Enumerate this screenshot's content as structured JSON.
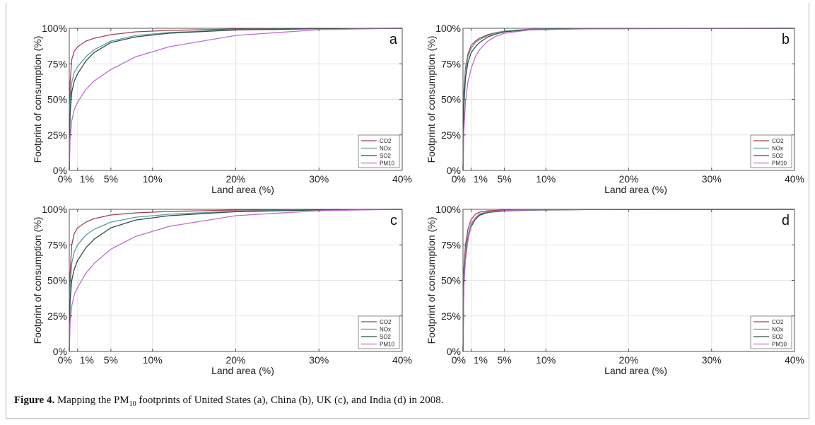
{
  "caption": {
    "label": "Figure 4.",
    "text_before": "Mapping the PM",
    "subscript": "10",
    "text_after": " footprints of United States (a), China (b), UK (c), and India (d) in 2008."
  },
  "colors": {
    "CO2": "#a0424c",
    "NOx": "#5e9aa2",
    "SO2": "#2c4f40",
    "PM10": "#c06ad0"
  },
  "chart_data": [
    {
      "type": "line",
      "panel": "a",
      "xlabel": "Land area (%)",
      "ylabel": "Footprint of consumption (%)",
      "xlim": [
        0,
        40
      ],
      "ylim": [
        0,
        100
      ],
      "xticks": [
        "0%",
        "1%",
        "5%",
        "10%",
        "20%",
        "30%",
        "40%"
      ],
      "xtick_values": [
        0,
        1,
        5,
        10,
        20,
        30,
        40
      ],
      "yticks": [
        "0%",
        "25%",
        "50%",
        "75%",
        "100%"
      ],
      "ytick_values": [
        0,
        25,
        50,
        75,
        100
      ],
      "grid": true,
      "legend": "bottom-right",
      "series": [
        {
          "name": "CO2",
          "x": [
            0,
            0.1,
            0.3,
            0.6,
            1,
            2,
            3,
            5,
            8,
            12,
            20,
            30,
            40
          ],
          "y": [
            0,
            62,
            78,
            84,
            87,
            91,
            93,
            95.5,
            97.5,
            98.5,
            99.5,
            99.9,
            100
          ]
        },
        {
          "name": "NOx",
          "x": [
            0,
            0.1,
            0.3,
            0.6,
            1,
            2,
            3,
            5,
            8,
            12,
            20,
            30,
            40
          ],
          "y": [
            0,
            48,
            62,
            69,
            73,
            80,
            85,
            91,
            95,
            97,
            99,
            99.8,
            100
          ]
        },
        {
          "name": "SO2",
          "x": [
            0,
            0.1,
            0.3,
            0.6,
            1,
            2,
            3,
            5,
            8,
            12,
            20,
            30,
            40
          ],
          "y": [
            0,
            40,
            55,
            63,
            68,
            77,
            83,
            90,
            94,
            96.5,
            98.8,
            99.7,
            100
          ]
        },
        {
          "name": "PM10",
          "x": [
            0,
            0.1,
            0.3,
            0.6,
            1,
            2,
            3,
            5,
            8,
            12,
            20,
            30,
            40
          ],
          "y": [
            0,
            22,
            35,
            43,
            48,
            57,
            63,
            71,
            80,
            87,
            95,
            99,
            100
          ]
        }
      ]
    },
    {
      "type": "line",
      "panel": "b",
      "xlabel": "Land area (%)",
      "ylabel": "Footprint of consumption (%)",
      "xlim": [
        0,
        40
      ],
      "ylim": [
        0,
        100
      ],
      "xticks": [
        "0%",
        "1%",
        "5%",
        "10%",
        "20%",
        "30%",
        "40%"
      ],
      "xtick_values": [
        0,
        1,
        5,
        10,
        20,
        30,
        40
      ],
      "yticks": [
        "0%",
        "25%",
        "50%",
        "75%",
        "100%"
      ],
      "ytick_values": [
        0,
        25,
        50,
        75,
        100
      ],
      "grid": true,
      "legend": "bottom-right",
      "series": [
        {
          "name": "CO2",
          "x": [
            0,
            0.1,
            0.3,
            0.6,
            1,
            1.5,
            2,
            3,
            4,
            5,
            8,
            15,
            40
          ],
          "y": [
            0,
            55,
            72,
            82,
            88,
            91,
            93,
            95.5,
            97,
            98,
            99.3,
            99.8,
            100
          ]
        },
        {
          "name": "NOx",
          "x": [
            0,
            0.1,
            0.3,
            0.6,
            1,
            1.5,
            2,
            3,
            4,
            5,
            8,
            15,
            40
          ],
          "y": [
            0,
            52,
            70,
            80,
            86,
            90,
            92,
            95,
            96.8,
            98,
            99.3,
            99.8,
            100
          ]
        },
        {
          "name": "SO2",
          "x": [
            0,
            0.1,
            0.3,
            0.6,
            1,
            1.5,
            2,
            3,
            4,
            5,
            8,
            15,
            40
          ],
          "y": [
            0,
            45,
            65,
            76,
            83,
            87,
            90,
            94,
            96,
            97.5,
            99,
            99.7,
            100
          ]
        },
        {
          "name": "PM10",
          "x": [
            0,
            0.1,
            0.3,
            0.6,
            1,
            1.5,
            2,
            3,
            4,
            5,
            8,
            15,
            40
          ],
          "y": [
            0,
            28,
            48,
            62,
            72,
            80,
            85,
            91,
            94.5,
            96.5,
            98.8,
            99.6,
            100
          ]
        }
      ]
    },
    {
      "type": "line",
      "panel": "c",
      "xlabel": "Land area (%)",
      "ylabel": "Footprint of consumption (%)",
      "xlim": [
        0,
        40
      ],
      "ylim": [
        0,
        100
      ],
      "xticks": [
        "0%",
        "1%",
        "5%",
        "10%",
        "20%",
        "30%",
        "40%"
      ],
      "xtick_values": [
        0,
        1,
        5,
        10,
        20,
        30,
        40
      ],
      "yticks": [
        "0%",
        "25%",
        "50%",
        "75%",
        "100%"
      ],
      "ytick_values": [
        0,
        25,
        50,
        75,
        100
      ],
      "grid": true,
      "legend": "bottom-right",
      "series": [
        {
          "name": "CO2",
          "x": [
            0,
            0.1,
            0.3,
            0.6,
            1,
            2,
            3,
            5,
            8,
            12,
            20,
            30,
            40
          ],
          "y": [
            0,
            55,
            75,
            83,
            87,
            91,
            93.5,
            96,
            97.5,
            98.5,
            99.5,
            99.9,
            100
          ]
        },
        {
          "name": "NOx",
          "x": [
            0,
            0.1,
            0.3,
            0.6,
            1,
            2,
            3,
            5,
            8,
            12,
            20,
            30,
            40
          ],
          "y": [
            0,
            45,
            62,
            70,
            75,
            82,
            86,
            91,
            94.5,
            96.5,
            98.7,
            99.7,
            100
          ]
        },
        {
          "name": "SO2",
          "x": [
            0,
            0.1,
            0.3,
            0.6,
            1,
            2,
            3,
            5,
            8,
            12,
            20,
            30,
            40
          ],
          "y": [
            0,
            35,
            50,
            58,
            64,
            73,
            79,
            87,
            92.5,
            95.5,
            98.3,
            99.6,
            100
          ]
        },
        {
          "name": "PM10",
          "x": [
            0,
            0.1,
            0.3,
            0.6,
            1,
            2,
            3,
            5,
            8,
            12,
            20,
            30,
            40
          ],
          "y": [
            0,
            20,
            32,
            40,
            45,
            55,
            62,
            72,
            81,
            88,
            95.5,
            99,
            100
          ]
        }
      ]
    },
    {
      "type": "line",
      "panel": "d",
      "xlabel": "Land area (%)",
      "ylabel": "Footprint of consumption (%)",
      "xlim": [
        0,
        40
      ],
      "ylim": [
        0,
        100
      ],
      "xticks": [
        "0%",
        "1%",
        "5%",
        "10%",
        "20%",
        "30%",
        "40%"
      ],
      "xtick_values": [
        0,
        1,
        5,
        10,
        20,
        30,
        40
      ],
      "yticks": [
        "0%",
        "25%",
        "50%",
        "75%",
        "100%"
      ],
      "ytick_values": [
        0,
        25,
        50,
        75,
        100
      ],
      "grid": true,
      "legend": "bottom-right",
      "series": [
        {
          "name": "CO2",
          "x": [
            0,
            0.1,
            0.3,
            0.6,
            1,
            1.5,
            2,
            3,
            5,
            8,
            15,
            40
          ],
          "y": [
            0,
            58,
            75,
            86,
            93,
            96.5,
            98,
            99,
            99.5,
            99.8,
            99.9,
            100
          ]
        },
        {
          "name": "NOx",
          "x": [
            0,
            0.1,
            0.3,
            0.6,
            1,
            1.5,
            2,
            3,
            5,
            8,
            15,
            40
          ],
          "y": [
            0,
            52,
            70,
            82,
            90,
            94,
            96.5,
            98,
            99,
            99.5,
            99.8,
            100
          ]
        },
        {
          "name": "SO2",
          "x": [
            0,
            0.1,
            0.3,
            0.6,
            1,
            1.5,
            2,
            3,
            5,
            8,
            15,
            40
          ],
          "y": [
            0,
            48,
            66,
            79,
            88,
            93,
            95.8,
            97.8,
            98.8,
            99.4,
            99.8,
            100
          ]
        },
        {
          "name": "PM10",
          "x": [
            0,
            0.1,
            0.3,
            0.6,
            1,
            1.5,
            2,
            3,
            5,
            8,
            15,
            40
          ],
          "y": [
            0,
            45,
            64,
            78,
            89,
            94,
            96.8,
            98.3,
            99.2,
            99.6,
            99.9,
            100
          ]
        }
      ]
    }
  ]
}
